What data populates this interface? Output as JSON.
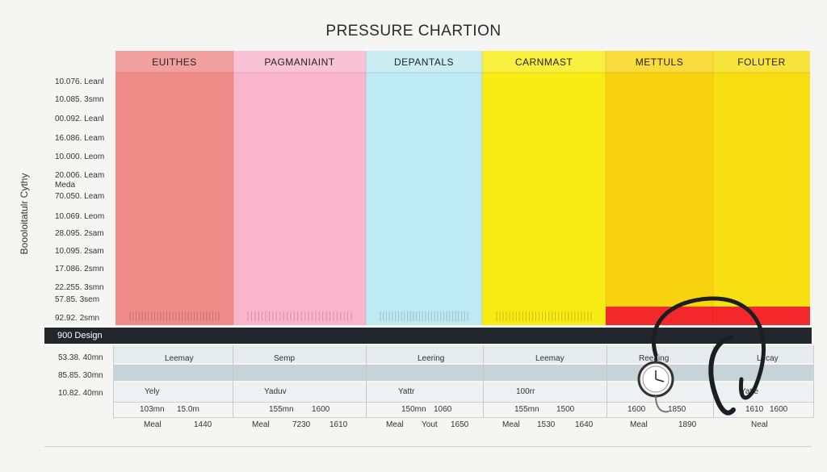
{
  "chart_data": {
    "type": "bar",
    "title": "PRESSURE CHARTION",
    "ylabel": "Boooloitatulr Cythy",
    "categories": [
      "EUITHES",
      "PAGMANIAINT",
      "DEPANTALS",
      "CARNMAST",
      "METTULS",
      "FOLUTER"
    ],
    "colors": [
      "#f08c88",
      "#f9b5cc",
      "#bdeaf0",
      "#f8ec14",
      "#f9d310",
      "#f8df12"
    ],
    "ytick_labels": [
      "10.076. Leanl",
      "10.085. 3smn",
      "00.092. Leanl",
      "16.086. Leam",
      "10.000. Leom",
      "20.006. Leam",
      "Meda",
      "70.050. Leam",
      "10.069. Leom",
      "28.095. 2sam",
      "10.095. 2sam",
      "17.086. 2smn",
      "22.255. 3smn",
      "57.85. 3sem",
      "92.92. 2smn"
    ],
    "highlight_categories": [
      "METTULS",
      "FOLUTER"
    ],
    "highlight_color": "#f3282a"
  },
  "band": {
    "label": "900 Design"
  },
  "row_labels": [
    "53.38. 40mn",
    "85.85. 30mn",
    "10.82. 40mn"
  ],
  "table": {
    "header": [
      "Leemay",
      "Semp",
      "Leering",
      "Leemay",
      "Reeaing",
      "Lecay"
    ],
    "row2": [
      "Yely",
      "Yaduv",
      "Yattr",
      "100rr",
      "",
      "Yatle"
    ],
    "row3": [
      [
        "103mn",
        "15.0m"
      ],
      [
        "155mn",
        "1600"
      ],
      [
        "150mn",
        "1060"
      ],
      [
        "155mn",
        "1500"
      ],
      [
        "1600",
        "1850"
      ],
      [
        "1610",
        "1600"
      ]
    ],
    "row4": [
      [
        "Meal",
        "1440"
      ],
      [
        "Meal",
        "7230",
        "1610"
      ],
      [
        "Meal",
        "Yout",
        "1650"
      ],
      [
        "Meal",
        "1530",
        "1640"
      ],
      [
        "Meal",
        "1890"
      ],
      [
        "Neal"
      ]
    ]
  }
}
